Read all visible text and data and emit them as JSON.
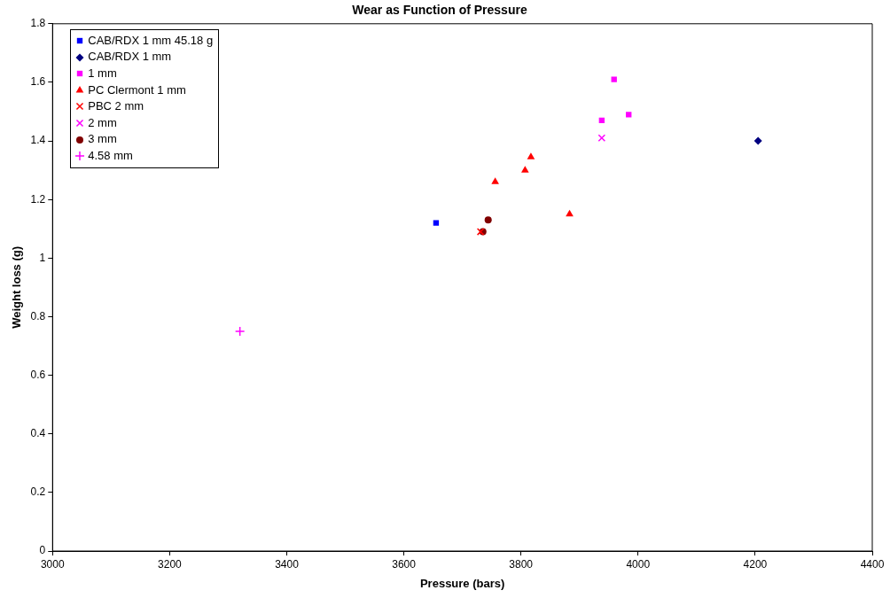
{
  "chart_data": {
    "type": "scatter",
    "title": "Wear as Function of Pressure",
    "xlabel": "Pressure (bars)",
    "ylabel": "Weight loss (g)",
    "xlim": [
      3000,
      4400
    ],
    "xticks": [
      3000,
      3200,
      3400,
      3600,
      3800,
      4000,
      4200,
      4400
    ],
    "ylim": [
      0,
      1.8
    ],
    "yticks": [
      0,
      0.2,
      0.4,
      0.6,
      0.8,
      1,
      1.2,
      1.4,
      1.6,
      1.8
    ],
    "grid": false,
    "legend": "top left",
    "series": [
      {
        "name": "CAB/RDX 1 mm 45.18 g",
        "color": "#0000ff",
        "marker": "square",
        "x": [
          3655
        ],
        "values": [
          1.12
        ]
      },
      {
        "name": "CAB/RDX 1 mm",
        "color": "#000080",
        "marker": "diamond",
        "x": [
          4205
        ],
        "values": [
          1.4
        ]
      },
      {
        "name": "1 mm",
        "color": "#ff00ff",
        "marker": "square",
        "x": [
          3959,
          3984,
          3938
        ],
        "values": [
          1.61,
          1.49,
          1.47
        ]
      },
      {
        "name": "PC Clermont 1 mm",
        "color": "#ff0000",
        "marker": "triangle",
        "x": [
          3817,
          3807,
          3756,
          3883
        ],
        "values": [
          1.345,
          1.3,
          1.26,
          1.15
        ]
      },
      {
        "name": "PBC 2 mm",
        "color": "#ff0000",
        "marker": "cross",
        "x": [
          3731
        ],
        "values": [
          1.09
        ]
      },
      {
        "name": "2 mm",
        "color": "#ff00ff",
        "marker": "cross",
        "x": [
          3938
        ],
        "values": [
          1.41
        ]
      },
      {
        "name": "3 mm",
        "color": "#800000",
        "marker": "circle",
        "x": [
          3744,
          3735
        ],
        "values": [
          1.13,
          1.09
        ]
      },
      {
        "name": "4.58 mm",
        "color": "#ff00ff",
        "marker": "plus",
        "x": [
          3320
        ],
        "values": [
          0.75
        ]
      }
    ]
  }
}
